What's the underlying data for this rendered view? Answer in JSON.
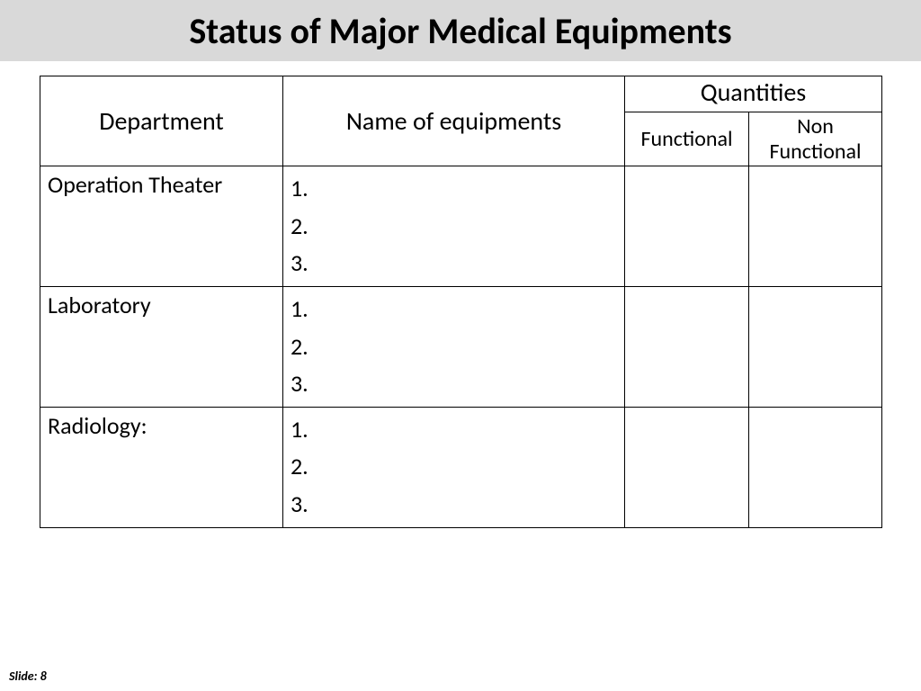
{
  "title": "Status of Major Medical Equipments",
  "footer": "Slide: 8",
  "table": {
    "headers": {
      "department": "Department",
      "equipments": "Name of equipments",
      "quantities": "Quantities",
      "functional": "Functional",
      "non_functional": "Non Functional"
    },
    "rows": [
      {
        "department": "Operation Theater",
        "items": [
          "1.",
          "2.",
          "3."
        ],
        "functional": "",
        "non_functional": ""
      },
      {
        "department": "Laboratory",
        "items": [
          "1.",
          "2.",
          "3."
        ],
        "functional": "",
        "non_functional": ""
      },
      {
        "department": "Radiology:",
        "items": [
          "1.",
          "2.",
          "3."
        ],
        "functional": "",
        "non_functional": ""
      }
    ]
  },
  "style": {
    "title_bg": "#d9d9d9",
    "border_color": "#000000",
    "page_bg": "#ffffff",
    "title_fontsize": 40,
    "header_fontsize": 28,
    "subheader_fontsize": 24,
    "cell_fontsize": 26,
    "footer_fontsize": 14
  }
}
